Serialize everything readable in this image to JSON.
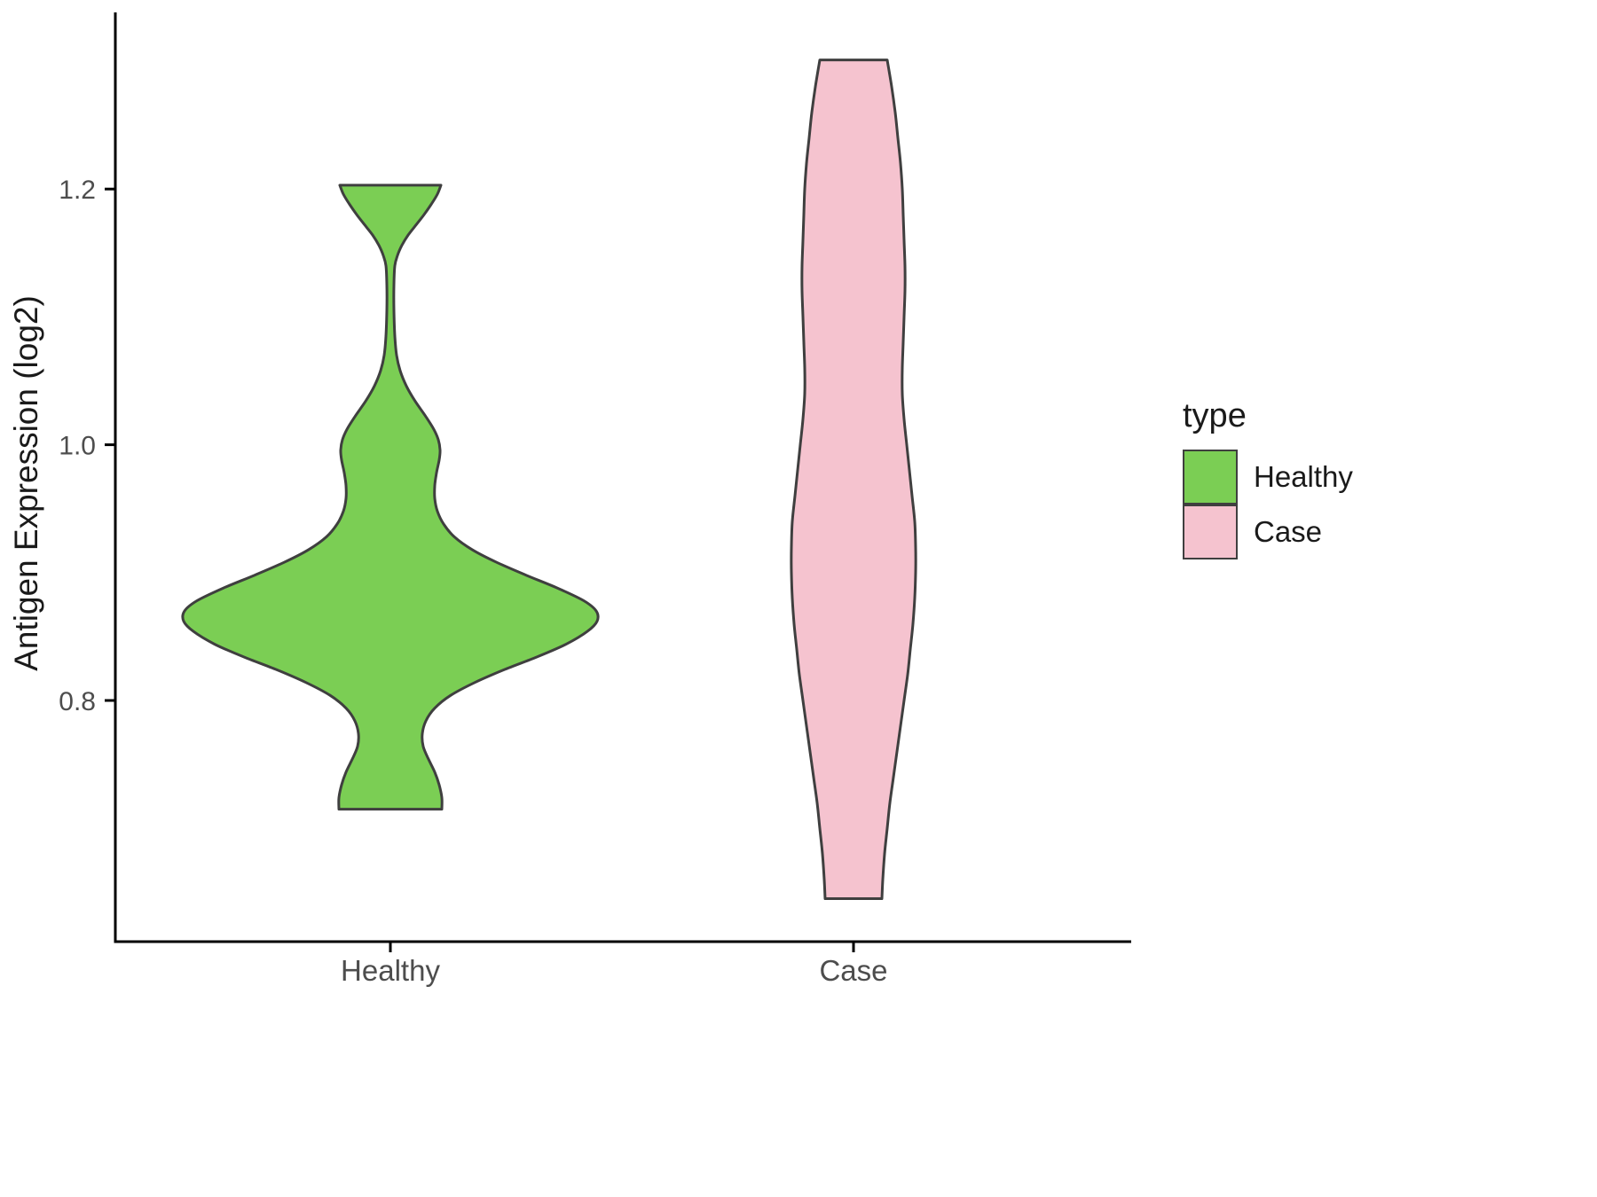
{
  "chart_data": {
    "type": "violin",
    "title": "",
    "xlabel": "",
    "ylabel": "Antigen Expression (log2)",
    "categories": [
      "Healthy",
      "Case"
    ],
    "y_ticks": [
      0.8,
      1.0,
      1.2
    ],
    "ylim": [
      0.62,
      1.33
    ],
    "grid": false,
    "legend": {
      "title": "type",
      "position": "right",
      "entries": [
        {
          "label": "Healthy",
          "color": "#7BCE54"
        },
        {
          "label": "Case",
          "color": "#F5C3CF"
        }
      ]
    },
    "style": {
      "axis_color": "#000000",
      "tick_label_color": "#4D4D4D",
      "violin_stroke": "#3f3f3f",
      "background": "#ffffff"
    },
    "series": [
      {
        "name": "Healthy",
        "fill": "#7BCE54",
        "stroke": "#3f3f3f",
        "value_range": [
          0.715,
          1.203
        ],
        "profile": [
          [
            1.203,
            57
          ],
          [
            1.196,
            53
          ],
          [
            1.188,
            46
          ],
          [
            1.18,
            38
          ],
          [
            1.172,
            29
          ],
          [
            1.164,
            20
          ],
          [
            1.156,
            13
          ],
          [
            1.148,
            8
          ],
          [
            1.14,
            5
          ],
          [
            1.125,
            4
          ],
          [
            1.105,
            4
          ],
          [
            1.085,
            5
          ],
          [
            1.07,
            7
          ],
          [
            1.058,
            11
          ],
          [
            1.046,
            18
          ],
          [
            1.034,
            28
          ],
          [
            1.022,
            40
          ],
          [
            1.012,
            49
          ],
          [
            1.004,
            54
          ],
          [
            0.996,
            56
          ],
          [
            0.988,
            55
          ],
          [
            0.978,
            52
          ],
          [
            0.968,
            50
          ],
          [
            0.958,
            50
          ],
          [
            0.948,
            53
          ],
          [
            0.938,
            60
          ],
          [
            0.928,
            72
          ],
          [
            0.918,
            92
          ],
          [
            0.908,
            120
          ],
          [
            0.898,
            153
          ],
          [
            0.888,
            188
          ],
          [
            0.878,
            218
          ],
          [
            0.87,
            232
          ],
          [
            0.862,
            233
          ],
          [
            0.854,
            222
          ],
          [
            0.844,
            198
          ],
          [
            0.834,
            165
          ],
          [
            0.824,
            128
          ],
          [
            0.814,
            95
          ],
          [
            0.804,
            68
          ],
          [
            0.794,
            50
          ],
          [
            0.784,
            40
          ],
          [
            0.774,
            36
          ],
          [
            0.764,
            37
          ],
          [
            0.754,
            43
          ],
          [
            0.744,
            50
          ],
          [
            0.734,
            55
          ],
          [
            0.724,
            58
          ],
          [
            0.715,
            58
          ]
        ]
      },
      {
        "name": "Case",
        "fill": "#F5C3CF",
        "stroke": "#3f3f3f",
        "value_range": [
          0.645,
          1.301
        ],
        "profile": [
          [
            1.301,
            38
          ],
          [
            1.28,
            43
          ],
          [
            1.26,
            47
          ],
          [
            1.24,
            50
          ],
          [
            1.22,
            53
          ],
          [
            1.2,
            55
          ],
          [
            1.18,
            56
          ],
          [
            1.16,
            57
          ],
          [
            1.14,
            58
          ],
          [
            1.12,
            58
          ],
          [
            1.1,
            57
          ],
          [
            1.08,
            56
          ],
          [
            1.06,
            55
          ],
          [
            1.04,
            55
          ],
          [
            1.02,
            57
          ],
          [
            1.0,
            60
          ],
          [
            0.98,
            63
          ],
          [
            0.96,
            66
          ],
          [
            0.94,
            69
          ],
          [
            0.92,
            70
          ],
          [
            0.9,
            70
          ],
          [
            0.88,
            69
          ],
          [
            0.86,
            67
          ],
          [
            0.84,
            64
          ],
          [
            0.82,
            61
          ],
          [
            0.8,
            57
          ],
          [
            0.78,
            53
          ],
          [
            0.76,
            49
          ],
          [
            0.74,
            45
          ],
          [
            0.72,
            41
          ],
          [
            0.7,
            38
          ],
          [
            0.68,
            35
          ],
          [
            0.66,
            33
          ],
          [
            0.645,
            32
          ]
        ]
      }
    ]
  }
}
